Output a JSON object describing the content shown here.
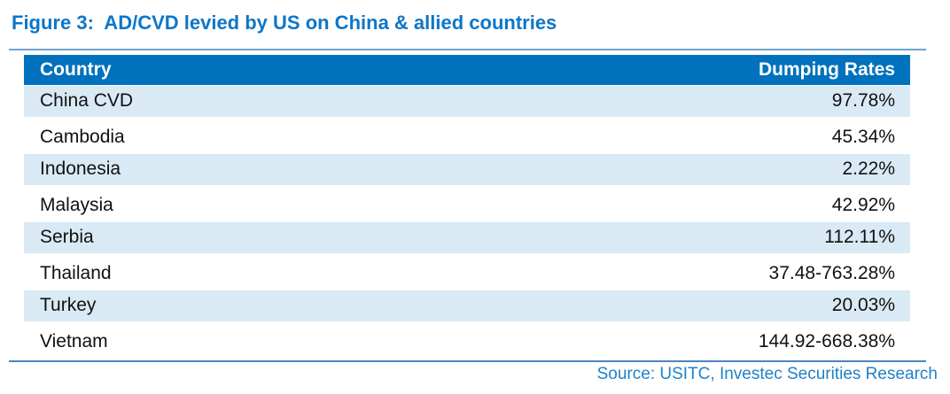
{
  "figure": {
    "title": "Figure 3:  AD/CVD levied by US on China & allied countries",
    "source_note": "Source: USITC, Investec Securities Research"
  },
  "table": {
    "columns": [
      "Country",
      "Dumping Rates"
    ],
    "rows": [
      {
        "country": "China CVD",
        "rate": "97.78%"
      },
      {
        "country": "Cambodia",
        "rate": "45.34%"
      },
      {
        "country": "Indonesia",
        "rate": "2.22%"
      },
      {
        "country": "Malaysia",
        "rate": "42.92%"
      },
      {
        "country": "Serbia",
        "rate": "112.11%"
      },
      {
        "country": "Thailand",
        "rate": "37.48-763.28%"
      },
      {
        "country": "Turkey",
        "rate": "20.03%"
      },
      {
        "country": "Vietnam",
        "rate": "144.92-668.38%"
      }
    ]
  },
  "colors": {
    "title_blue": "#0d76c8",
    "header_bg": "#0071bc",
    "header_text": "#ffffff",
    "stripe_bg": "#d9eaf5",
    "top_rule": "#71a5d3",
    "bottom_rule": "#4a86be",
    "source_text": "#1e82c8",
    "row_text": "#111111"
  },
  "chart_data": {
    "type": "table",
    "title": "Figure 3:  AD/CVD levied by US on China & allied countries",
    "columns": [
      "Country",
      "Dumping Rates"
    ],
    "rows": [
      [
        "China CVD",
        "97.78%"
      ],
      [
        "Cambodia",
        "45.34%"
      ],
      [
        "Indonesia",
        "2.22%"
      ],
      [
        "Malaysia",
        "42.92%"
      ],
      [
        "Serbia",
        "112.11%"
      ],
      [
        "Thailand",
        "37.48-763.28%"
      ],
      [
        "Turkey",
        "20.03%"
      ],
      [
        "Vietnam",
        "144.92-668.38%"
      ]
    ],
    "source": "Source: USITC, Investec Securities Research"
  }
}
